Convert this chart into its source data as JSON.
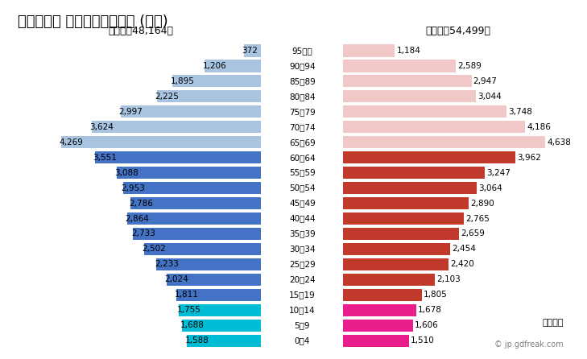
{
  "title": "２０４０年 橋原市の人口構成 (予測)",
  "male_total": "男性計：48,164人",
  "female_total": "女性計：54,499人",
  "age_groups": [
    "95歳～",
    "90～94",
    "85～89",
    "80～84",
    "75～79",
    "70～74",
    "65～69",
    "60～64",
    "55～59",
    "50～54",
    "45～49",
    "40～44",
    "35～39",
    "30～34",
    "25～29",
    "20～24",
    "15～19",
    "10～14",
    "5～9",
    "0～4"
  ],
  "male_values": [
    372,
    1206,
    1895,
    2225,
    2997,
    3624,
    4269,
    3551,
    3088,
    2953,
    2786,
    2864,
    2733,
    2502,
    2233,
    2024,
    1811,
    1755,
    1688,
    1588
  ],
  "female_values": [
    1184,
    2589,
    2947,
    3044,
    3748,
    4186,
    4638,
    3962,
    3247,
    3064,
    2890,
    2765,
    2659,
    2454,
    2420,
    2103,
    1805,
    1678,
    1606,
    1510
  ],
  "male_colors": {
    "elderly": "#a8c4e0",
    "working": "#4472c4",
    "young": "#00bcd4"
  },
  "female_colors": {
    "elderly": "#f0c8c8",
    "working": "#c0392b",
    "young": "#e91e8c"
  },
  "elderly_age_indices": [
    0,
    1,
    2,
    3,
    4,
    5,
    6
  ],
  "working_age_indices": [
    7,
    8,
    9,
    10,
    11,
    12,
    13,
    14,
    15,
    16
  ],
  "young_age_indices": [
    17,
    18,
    19
  ],
  "background_color": "#ffffff",
  "watermark": "© jp.gdfreak.com",
  "unit_text": "単位：人",
  "xlim": 5200,
  "title_fontsize": 13,
  "label_fontsize": 7.5,
  "axis_label_fontsize": 7.5,
  "total_fontsize": 9
}
